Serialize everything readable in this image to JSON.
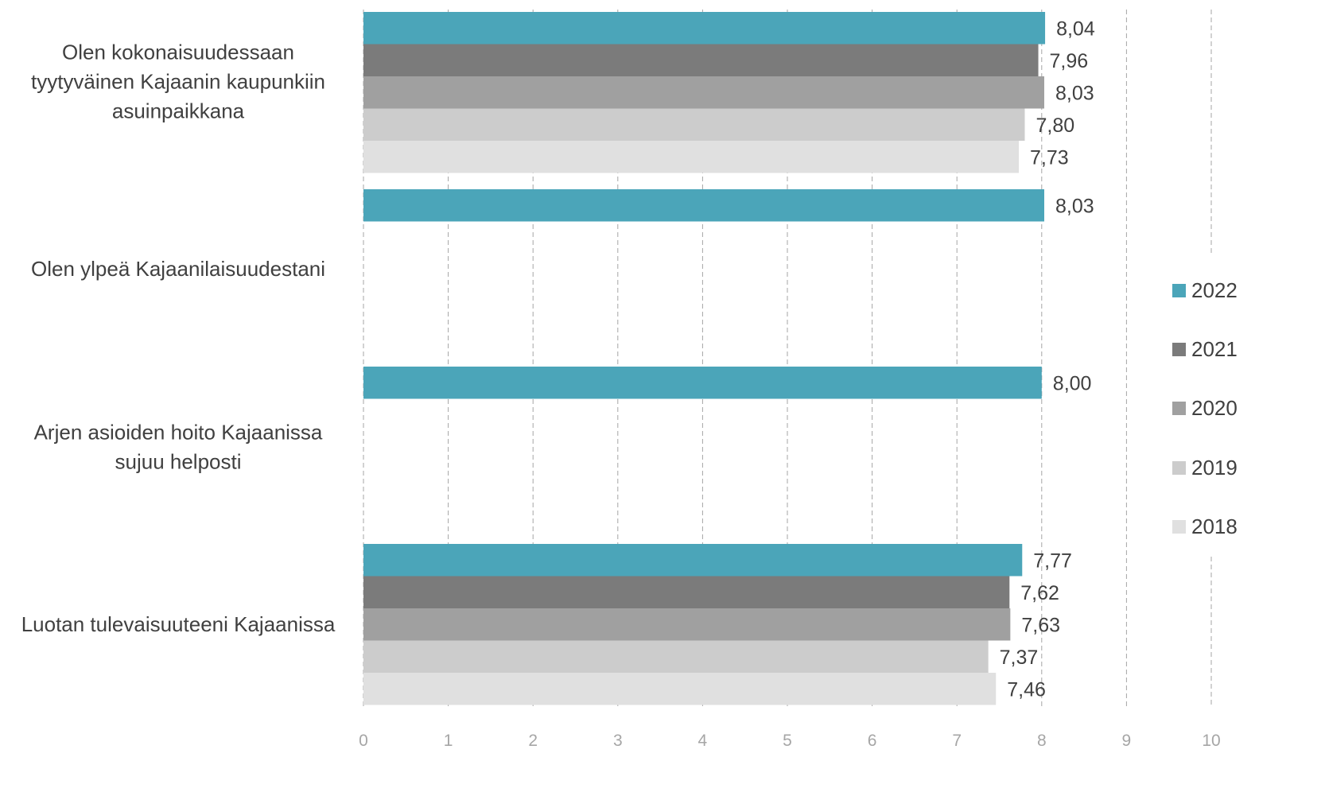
{
  "chart_data": {
    "type": "bar",
    "orientation": "horizontal",
    "categories": [
      "Olen kokonaisuudessaan tyytyväinen Kajaanin kaupunkiin asuinpaikkana",
      "Olen ylpeä Kajaanilaisuudestani",
      "Arjen asioiden hoito Kajaanissa sujuu helposti",
      "Luotan tulevaisuuteeni Kajaanissa"
    ],
    "category_label_lines": [
      [
        "Olen kokonaisuudessaan",
        "tyytyväinen Kajaanin kaupunkiin",
        "asuinpaikkana"
      ],
      [
        "Olen ylpeä Kajaanilaisuudestani"
      ],
      [
        "Arjen asioiden hoito Kajaanissa",
        "sujuu helposti"
      ],
      [
        "Luotan tulevaisuuteeni Kajaanissa"
      ]
    ],
    "series": [
      {
        "name": "2022",
        "color": "#4BA5B9",
        "values": [
          8.04,
          8.03,
          8.0,
          7.77
        ]
      },
      {
        "name": "2021",
        "color": "#7B7B7B",
        "values": [
          7.96,
          null,
          null,
          7.62
        ]
      },
      {
        "name": "2020",
        "color": "#A0A0A0",
        "values": [
          8.03,
          null,
          null,
          7.63
        ]
      },
      {
        "name": "2019",
        "color": "#CCCCCC",
        "values": [
          7.8,
          null,
          null,
          7.37
        ]
      },
      {
        "name": "2018",
        "color": "#E0E0E0",
        "values": [
          7.73,
          null,
          null,
          7.46
        ]
      }
    ],
    "data_labels": true,
    "decimal_separator": ",",
    "xlim": [
      0,
      10
    ],
    "xticks": [
      "0",
      "1",
      "2",
      "3",
      "4",
      "5",
      "6",
      "7",
      "8",
      "9",
      "10"
    ],
    "grid": "vertical dashed",
    "legend_position": "right"
  },
  "colors": {
    "grid": "#A6A6A6",
    "tick_text": "#A6A6A6",
    "label_text": "#404040",
    "value_text": "#404040"
  }
}
